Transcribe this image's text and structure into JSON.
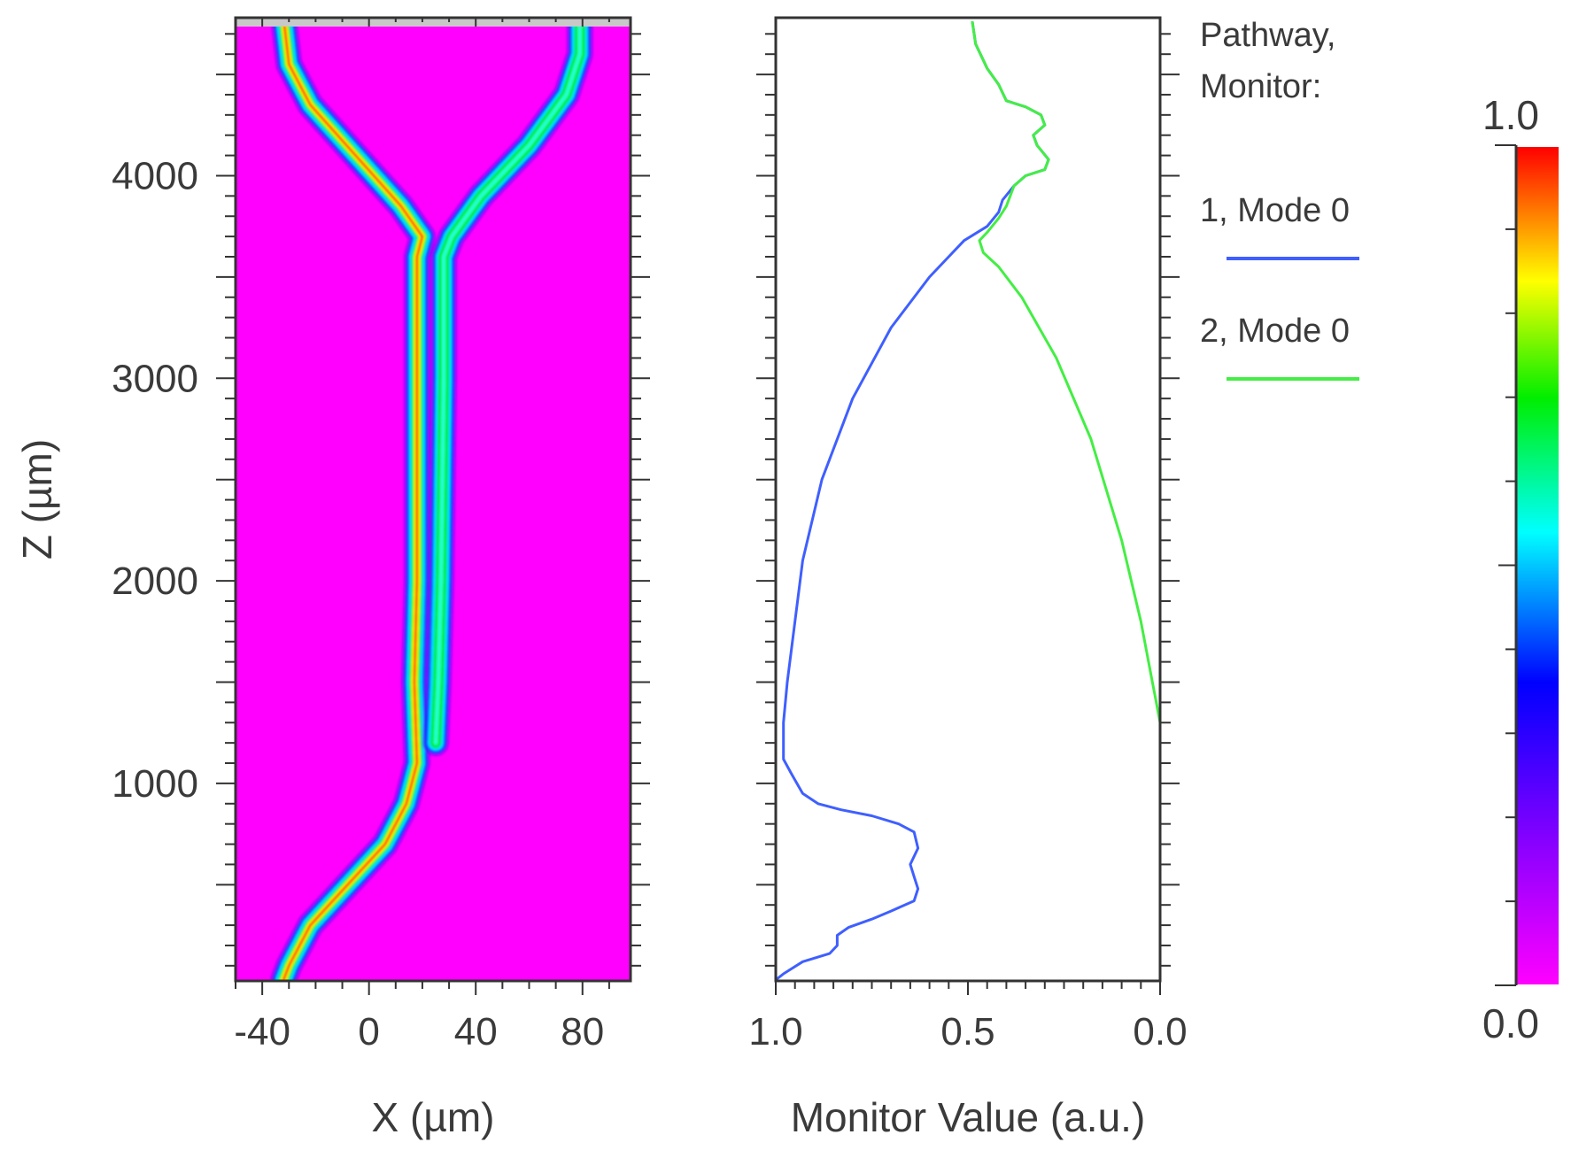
{
  "chart_data": [
    {
      "type": "heatmap",
      "title": "",
      "xlabel": "X (µm)",
      "ylabel": "Z (µm)",
      "xlim": [
        -50,
        98
      ],
      "ylim": [
        25,
        4780
      ],
      "x_ticks": [
        -40,
        0,
        40,
        80
      ],
      "y_ticks": [
        1000,
        2000,
        3000,
        4000
      ],
      "tick_labels_x": [
        "-40",
        "0",
        "40",
        "80"
      ],
      "tick_labels_y": [
        "1000",
        "2000",
        "3000",
        "4000"
      ],
      "color_range": [
        0.0,
        1.0
      ],
      "colormap": "rainbow (magenta-blue-cyan-green-yellow-red)",
      "background_color": "#ff00ff",
      "waveguide_path_1_xz": [
        [
          -32,
          30
        ],
        [
          -30,
          100
        ],
        [
          -22,
          300
        ],
        [
          -8,
          500
        ],
        [
          6,
          700
        ],
        [
          14,
          900
        ],
        [
          18,
          1100
        ],
        [
          17,
          1500
        ],
        [
          18,
          2000
        ],
        [
          18,
          3000
        ],
        [
          18,
          3600
        ],
        [
          20,
          3700
        ],
        [
          12,
          3850
        ],
        [
          -5,
          4100
        ],
        [
          -22,
          4350
        ],
        [
          -30,
          4550
        ],
        [
          -32,
          4780
        ]
      ],
      "waveguide_path_2_xz": [
        [
          25,
          1200
        ],
        [
          26,
          1500
        ],
        [
          27,
          2000
        ],
        [
          28,
          3000
        ],
        [
          28,
          3600
        ],
        [
          31,
          3700
        ],
        [
          42,
          3900
        ],
        [
          60,
          4150
        ],
        [
          74,
          4400
        ],
        [
          79,
          4600
        ],
        [
          79,
          4780
        ]
      ]
    },
    {
      "type": "line",
      "title": "",
      "xlabel": "Monitor Value (a.u.)",
      "ylabel": "",
      "xlim": [
        1.0,
        0.0
      ],
      "ylim": [
        25,
        4780
      ],
      "x_ticks": [
        1.0,
        0.5,
        0.0
      ],
      "tick_labels_x": [
        "1.0",
        "0.5",
        "0.0"
      ],
      "legend_title": "Pathway, Monitor:",
      "legend_title_line1": "Pathway,",
      "legend_title_line2": "Monitor:",
      "legend_position": "right",
      "series": [
        {
          "name": "1, Mode 0",
          "color": "#3f5fff",
          "points": [
            [
              1.0,
              30
            ],
            [
              0.98,
              60
            ],
            [
              0.93,
              120
            ],
            [
              0.86,
              160
            ],
            [
              0.84,
              200
            ],
            [
              0.84,
              250
            ],
            [
              0.81,
              290
            ],
            [
              0.75,
              330
            ],
            [
              0.7,
              370
            ],
            [
              0.64,
              420
            ],
            [
              0.63,
              480
            ],
            [
              0.64,
              540
            ],
            [
              0.65,
              600
            ],
            [
              0.63,
              680
            ],
            [
              0.64,
              760
            ],
            [
              0.68,
              800
            ],
            [
              0.75,
              840
            ],
            [
              0.83,
              870
            ],
            [
              0.89,
              900
            ],
            [
              0.93,
              950
            ],
            [
              0.96,
              1050
            ],
            [
              0.98,
              1120
            ],
            [
              0.98,
              1200
            ],
            [
              0.98,
              1300
            ],
            [
              0.97,
              1500
            ],
            [
              0.95,
              1800
            ],
            [
              0.93,
              2100
            ],
            [
              0.88,
              2500
            ],
            [
              0.8,
              2900
            ],
            [
              0.7,
              3250
            ],
            [
              0.6,
              3500
            ],
            [
              0.55,
              3600
            ],
            [
              0.51,
              3680
            ],
            [
              0.45,
              3750
            ],
            [
              0.42,
              3820
            ],
            [
              0.41,
              3880
            ],
            [
              0.38,
              3950
            ],
            [
              0.35,
              4000
            ],
            [
              0.3,
              4030
            ],
            [
              0.29,
              4080
            ],
            [
              0.32,
              4150
            ],
            [
              0.33,
              4200
            ],
            [
              0.3,
              4250
            ],
            [
              0.31,
              4300
            ],
            [
              0.35,
              4340
            ],
            [
              0.4,
              4370
            ],
            [
              0.42,
              4450
            ],
            [
              0.45,
              4530
            ],
            [
              0.48,
              4650
            ],
            [
              0.49,
              4780
            ]
          ]
        },
        {
          "name": "2, Mode 0",
          "color": "#44ee44",
          "points": [
            [
              0.0,
              30
            ],
            [
              0.0,
              1000
            ],
            [
              0.0,
              1300
            ],
            [
              0.01,
              1400
            ],
            [
              0.02,
              1500
            ],
            [
              0.05,
              1800
            ],
            [
              0.1,
              2200
            ],
            [
              0.18,
              2700
            ],
            [
              0.27,
              3100
            ],
            [
              0.36,
              3400
            ],
            [
              0.42,
              3550
            ],
            [
              0.46,
              3620
            ],
            [
              0.47,
              3680
            ],
            [
              0.45,
              3720
            ],
            [
              0.42,
              3790
            ],
            [
              0.4,
              3850
            ],
            [
              0.38,
              3950
            ],
            [
              0.35,
              4000
            ],
            [
              0.3,
              4030
            ],
            [
              0.29,
              4080
            ],
            [
              0.32,
              4150
            ],
            [
              0.33,
              4200
            ],
            [
              0.3,
              4250
            ],
            [
              0.31,
              4300
            ],
            [
              0.35,
              4340
            ],
            [
              0.4,
              4370
            ],
            [
              0.42,
              4450
            ],
            [
              0.45,
              4530
            ],
            [
              0.48,
              4650
            ],
            [
              0.49,
              4780
            ]
          ]
        }
      ]
    },
    {
      "type": "colorbar",
      "range": [
        0.0,
        1.0
      ],
      "max_label": "1.0",
      "min_label": "0.0",
      "stops": [
        "#ff00ff",
        "#8000ff",
        "#0000ff",
        "#00ffff",
        "#00ff00",
        "#ffff00",
        "#ff0000"
      ]
    }
  ]
}
